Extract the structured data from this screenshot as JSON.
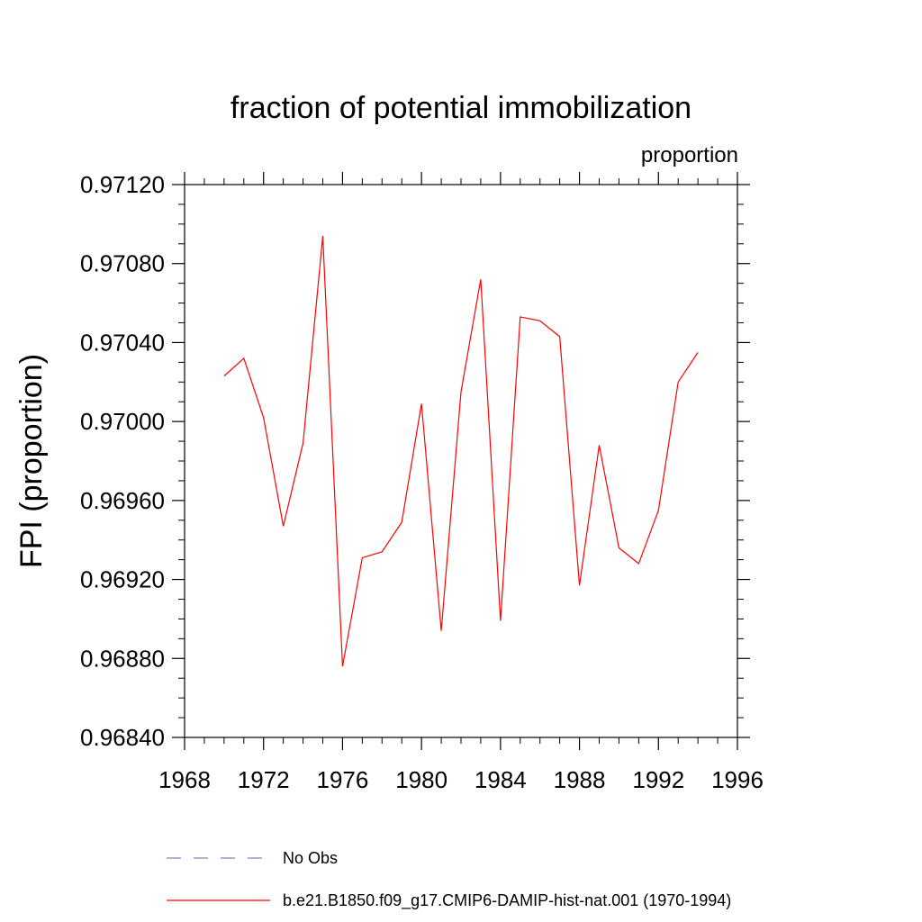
{
  "chart_data": {
    "type": "line",
    "title": "fraction of potential immobilization",
    "units_label": "proportion",
    "ylabel": "FPI  (proportion)",
    "xlabel": "",
    "xlim": [
      1968,
      1996
    ],
    "ylim": [
      0.9684,
      0.9712
    ],
    "x_ticks": [
      "1968",
      "1972",
      "1976",
      "1980",
      "1984",
      "1988",
      "1992",
      "1996"
    ],
    "y_ticks": [
      "0.96840",
      "0.96880",
      "0.96920",
      "0.96960",
      "0.97000",
      "0.97040",
      "0.97080",
      "0.97120"
    ],
    "grid": false,
    "legend_position": "bottom",
    "legend": [
      {
        "label": "No Obs",
        "color": "#8080c0",
        "style": "dashed"
      },
      {
        "label": "b.e21.B1850.f09_g17.CMIP6-DAMIP-hist-nat.001 (1970-1994)",
        "color": "#ff0000",
        "style": "solid"
      }
    ],
    "series": [
      {
        "name": "b.e21.B1850.f09_g17.CMIP6-DAMIP-hist-nat.001 (1970-1994)",
        "color": "#ff0000",
        "x": [
          1970,
          1971,
          1972,
          1973,
          1974,
          1975,
          1976,
          1977,
          1978,
          1979,
          1980,
          1981,
          1982,
          1983,
          1984,
          1985,
          1986,
          1987,
          1988,
          1989,
          1990,
          1991,
          1992,
          1993,
          1994
        ],
        "y": [
          0.97023,
          0.97032,
          0.97002,
          0.96947,
          0.96989,
          0.97094,
          0.96876,
          0.96931,
          0.96934,
          0.96949,
          0.97009,
          0.96894,
          0.97015,
          0.97072,
          0.96899,
          0.97053,
          0.97051,
          0.97043,
          0.96917,
          0.96988,
          0.96936,
          0.96928,
          0.96955,
          0.9702,
          0.97035
        ]
      }
    ]
  }
}
